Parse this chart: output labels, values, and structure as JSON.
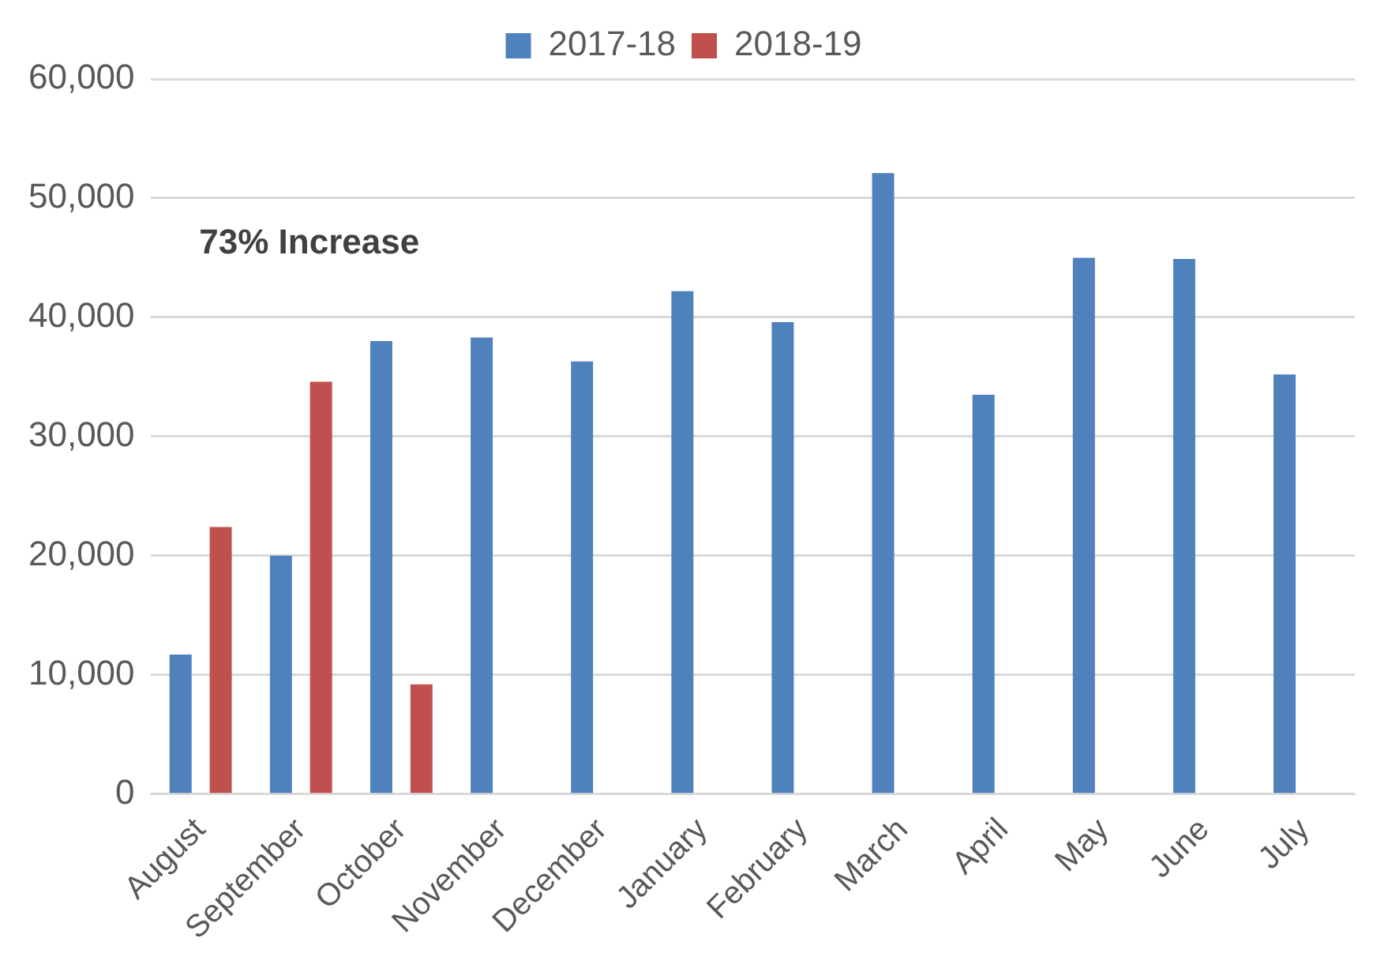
{
  "chart_data": {
    "type": "bar",
    "categories": [
      "August",
      "September",
      "October",
      "November",
      "December",
      "January",
      "February",
      "March",
      "April",
      "May",
      "June",
      "July"
    ],
    "series": [
      {
        "name": "2017-18",
        "color": "#4f81bd",
        "values": [
          11700,
          20000,
          38000,
          38300,
          36300,
          42200,
          39600,
          52100,
          33500,
          45000,
          44900,
          35200
        ]
      },
      {
        "name": "2018-19",
        "color": "#c0504d",
        "values": [
          22400,
          34600,
          9200,
          null,
          null,
          null,
          null,
          null,
          null,
          null,
          null,
          null
        ]
      }
    ],
    "ylim": [
      0,
      60000
    ],
    "yticks": [
      0,
      {
        "value": 10000,
        "label": "10,000"
      },
      {
        "value": 20000,
        "label": "20,000"
      },
      {
        "value": 30000,
        "label": "30,000"
      },
      {
        "value": 40000,
        "label": "40,000"
      },
      {
        "value": 50000,
        "label": "50,000"
      },
      {
        "value": 60000,
        "label": "60,000"
      }
    ],
    "grid": "y",
    "legend": "top",
    "annotations": [
      "73% Increase"
    ]
  }
}
